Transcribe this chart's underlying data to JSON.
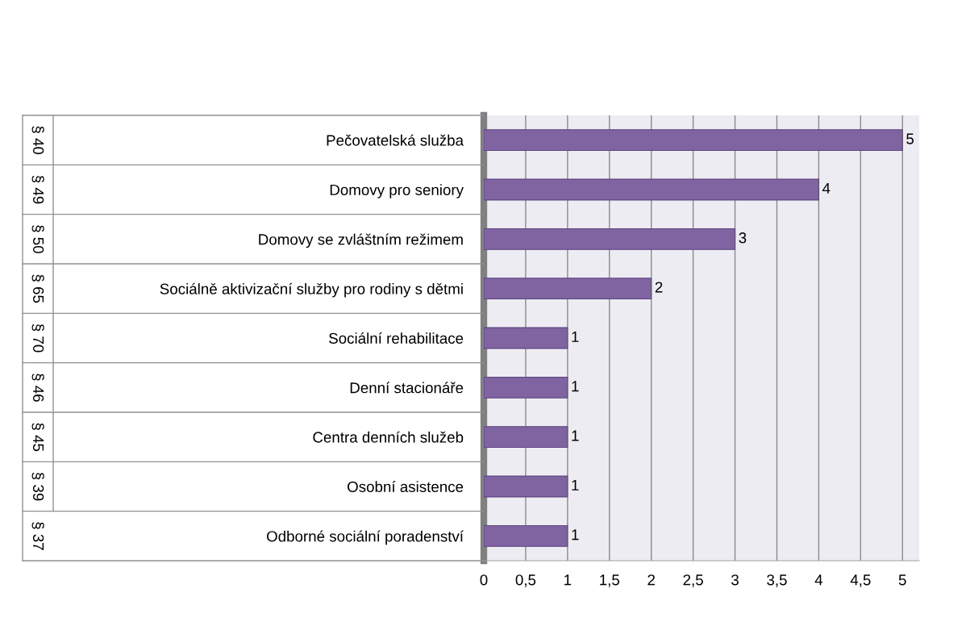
{
  "chart_data": {
    "type": "bar",
    "orientation": "horizontal",
    "categories": [
      "Pečovatelská služba",
      "Domovy pro seniory",
      "Domovy se zvláštním režimem",
      "Sociálně aktivizační služby pro rodiny s dětmi",
      "Sociální rehabilitace",
      "Denní stacionáře",
      "Centra denních služeb",
      "Osobní asistence",
      "Odborné sociální poradenství"
    ],
    "values": [
      5,
      4,
      3,
      2,
      1,
      1,
      1,
      1,
      1
    ],
    "color": "#8064a2",
    "xlim": [
      0,
      5.2
    ],
    "xticks": [
      0,
      {
        "value": 0.5,
        "label": "0,5"
      },
      1,
      {
        "value": 1.5,
        "label": "1,5"
      },
      2,
      {
        "value": 2.5,
        "label": "2,5"
      },
      3,
      {
        "value": 3.5,
        "label": "3,5"
      },
      4,
      {
        "value": 4.5,
        "label": "4,5"
      },
      5
    ],
    "grid": "x",
    "data_labels": true,
    "annotations": [
      "§ 40",
      "§ 49",
      "§ 50",
      "§ 65",
      "§ 70",
      "§ 46",
      "§ 45",
      "§ 39",
      "§ 37"
    ]
  }
}
